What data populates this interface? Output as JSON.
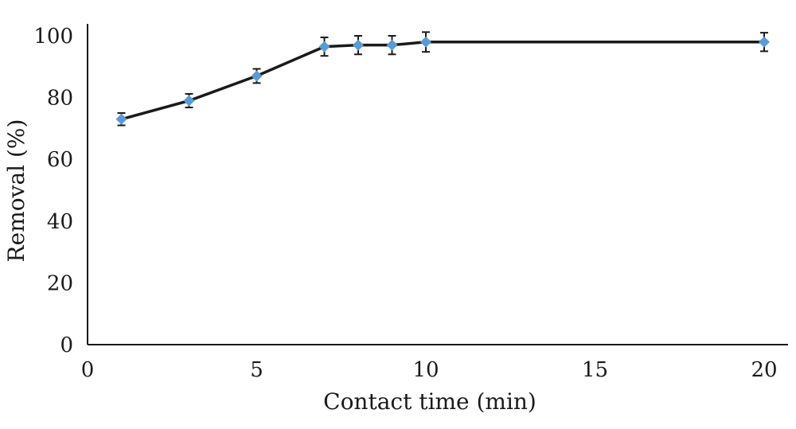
{
  "chart_data": {
    "type": "line",
    "title": "",
    "xlabel": "Contact time (min)",
    "ylabel": "Removal (%)",
    "xlim": [
      0,
      20
    ],
    "ylim": [
      0,
      100
    ],
    "xticks": [
      0,
      5,
      10,
      15,
      20
    ],
    "yticks": [
      0,
      20,
      40,
      60,
      80,
      100
    ],
    "grid": false,
    "series": [
      {
        "color": "#5b9bd5",
        "line_color": "#1a1a1a",
        "marker": "diamond",
        "x": [
          1,
          3,
          5,
          7,
          8,
          9,
          10,
          20
        ],
        "y": [
          73,
          79,
          87,
          96.5,
          97,
          97,
          98,
          98
        ],
        "error": [
          2,
          2.2,
          2.3,
          3,
          3,
          3,
          3.2,
          3
        ]
      }
    ]
  }
}
